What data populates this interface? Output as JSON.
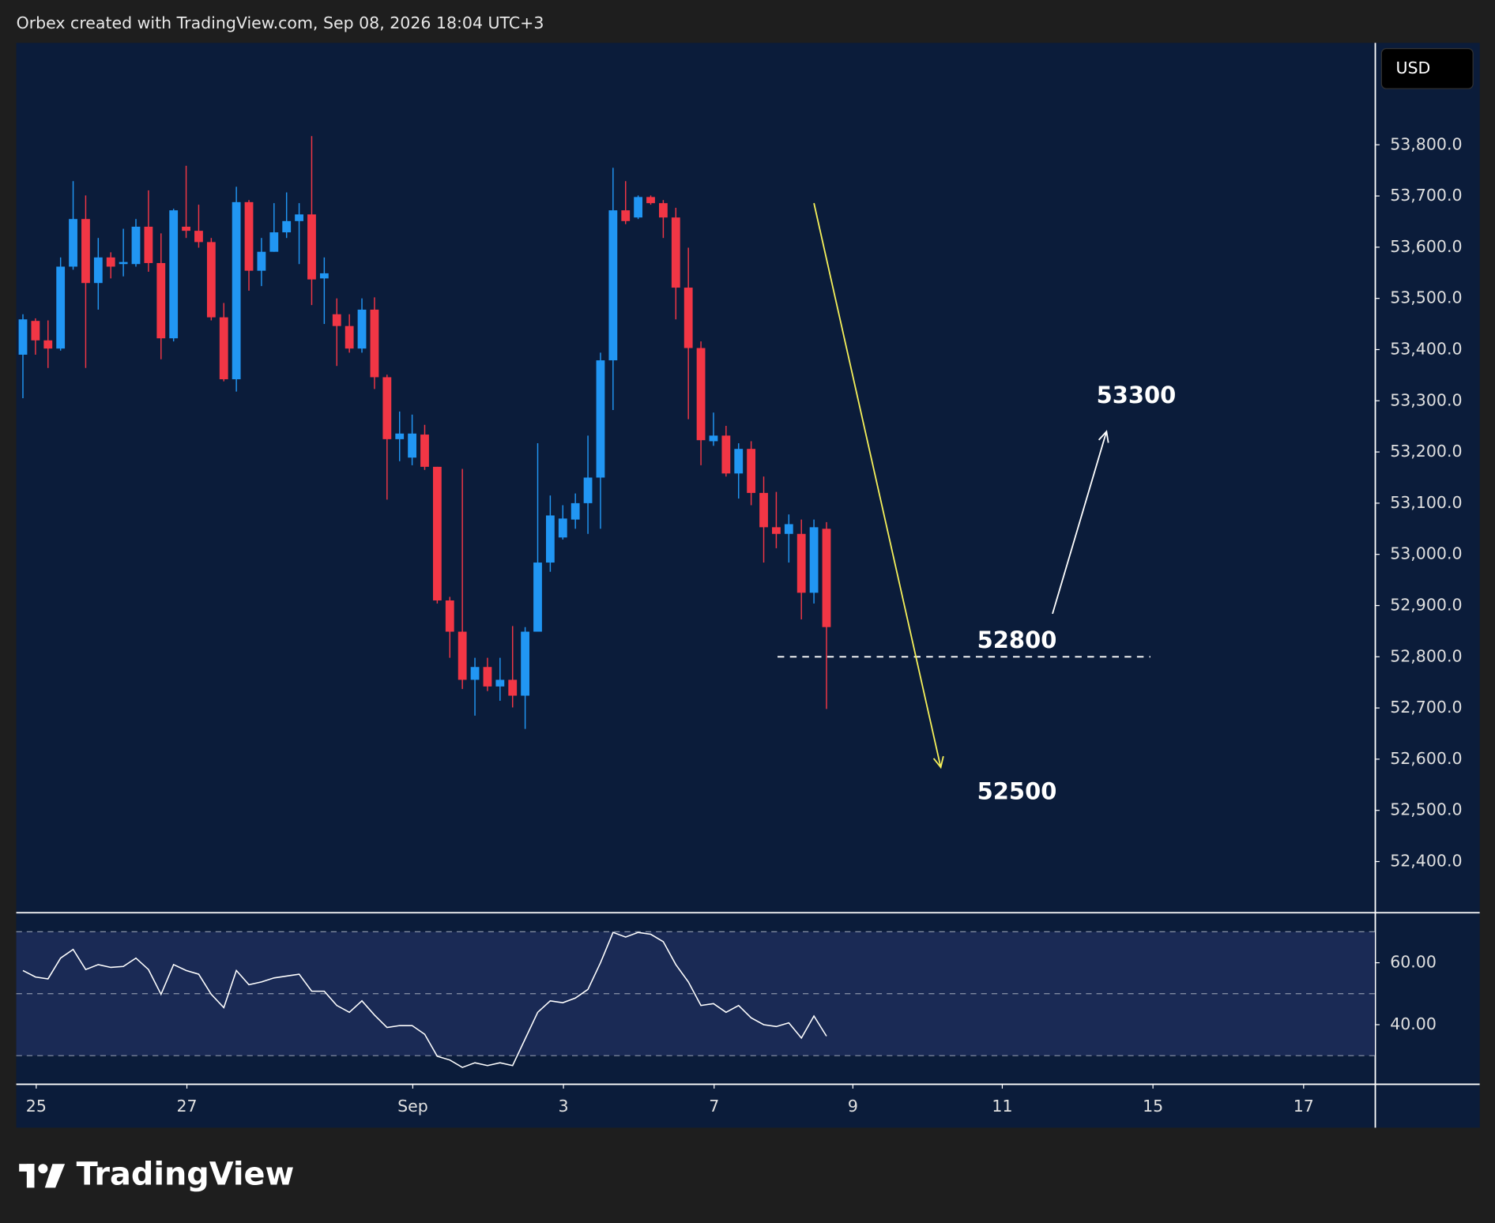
{
  "header": "Orbex created with TradingView.com, Sep 08, 2026 18:04 UTC+3",
  "brand": "TradingView",
  "chart_data": {
    "type": "candlestick",
    "currency": "USD",
    "xlim": [
      -0.53,
      107.67
    ],
    "xticks": [
      {
        "value": 1.06,
        "label": "25"
      },
      {
        "value": 13.06,
        "label": "27"
      },
      {
        "value": 31.05,
        "label": "Sep"
      },
      {
        "value": 43.05,
        "label": "3"
      },
      {
        "value": 55.05,
        "label": "7"
      },
      {
        "value": 66.1,
        "label": "9"
      },
      {
        "value": 78,
        "label": "11"
      },
      {
        "value": 90,
        "label": "15"
      },
      {
        "value": 102,
        "label": "17"
      }
    ],
    "ylim": [
      52301,
      53999
    ],
    "yticks": [
      {
        "value": 52400,
        "label": "52,400.0"
      },
      {
        "value": 52500,
        "label": "52,500.0"
      },
      {
        "value": 52600,
        "label": "52,600.0"
      },
      {
        "value": 52700,
        "label": "52,700.0"
      },
      {
        "value": 52800,
        "label": "52,800.0"
      },
      {
        "value": 52900,
        "label": "52,900.0"
      },
      {
        "value": 53000,
        "label": "53,000.0"
      },
      {
        "value": 53100,
        "label": "53,100.0"
      },
      {
        "value": 53200,
        "label": "53,200.0"
      },
      {
        "value": 53300,
        "label": "53,300.0"
      },
      {
        "value": 53400,
        "label": "53,400.0"
      },
      {
        "value": 53500,
        "label": "53,500.0"
      },
      {
        "value": 53600,
        "label": "53,600.0"
      },
      {
        "value": 53700,
        "label": "53,700.0"
      },
      {
        "value": 53800,
        "label": "53,800.0"
      }
    ],
    "up_color": "#2196f3",
    "down_color": "#f23645",
    "open": [
      53390,
      53456,
      53418,
      53402,
      53562,
      53655,
      53530,
      53580,
      53567,
      53567,
      53640,
      53569,
      53422,
      53640,
      53632,
      53610,
      53463,
      53342,
      53688,
      53554,
      53591,
      53629,
      53651,
      53664,
      53539,
      53469,
      53446,
      53402,
      53478,
      53346,
      53225,
      53189,
      53234,
      53171,
      52910,
      52849,
      52755,
      52780,
      52742,
      52755,
      52724,
      52849,
      52984,
      53033,
      53068,
      53100,
      53150,
      53379,
      53672,
      53658,
      53698,
      53686,
      53658,
      53521,
      53403,
      53221,
      53232,
      53158,
      53206,
      53120,
      53053,
      53040,
      53040,
      52925,
      53050
    ],
    "high": [
      53469,
      53461,
      53457,
      53580,
      53729,
      53701,
      53618,
      53590,
      53636,
      53655,
      53711,
      53627,
      53675,
      53759,
      53683,
      53618,
      53491,
      53718,
      53692,
      53618,
      53686,
      53707,
      53686,
      53817,
      53580,
      53500,
      53469,
      53500,
      53502,
      53351,
      53279,
      53273,
      53253,
      53171,
      52917,
      53167,
      52798,
      52798,
      52798,
      52860,
      52858,
      53217,
      53115,
      53096,
      53119,
      53232,
      53394,
      53755,
      53729,
      53701,
      53701,
      53692,
      53677,
      53599,
      53416,
      53277,
      53251,
      53217,
      53221,
      53152,
      53122,
      53078,
      53068,
      53068,
      53063
    ],
    "low": [
      53305,
      53390,
      53364,
      53398,
      53556,
      53364,
      53478,
      53539,
      53543,
      53562,
      53552,
      53381,
      53416,
      53618,
      53599,
      53457,
      53338,
      53318,
      53515,
      53524,
      53591,
      53618,
      53567,
      53487,
      53450,
      53368,
      53394,
      53394,
      53323,
      53107,
      53182,
      53174,
      53165,
      52904,
      52798,
      52737,
      52685,
      52733,
      52714,
      52701,
      52659,
      52849,
      52966,
      53029,
      53050,
      53040,
      53050,
      53282,
      53645,
      53655,
      53683,
      53618,
      53459,
      53264,
      53174,
      53212,
      53152,
      53109,
      53096,
      52984,
      53012,
      52984,
      52873,
      52904,
      52698
    ],
    "close": [
      53459,
      53418,
      53402,
      53562,
      53655,
      53530,
      53580,
      53562,
      53571,
      53640,
      53569,
      53422,
      53672,
      53632,
      53610,
      53463,
      53342,
      53688,
      53554,
      53591,
      53629,
      53651,
      53664,
      53537,
      53549,
      53446,
      53402,
      53478,
      53346,
      53225,
      53236,
      53236,
      53171,
      52910,
      52849,
      52755,
      52780,
      52742,
      52755,
      52724,
      52849,
      52984,
      53076,
      53070,
      53100,
      53150,
      53379,
      53672,
      53651,
      53698,
      53686,
      53658,
      53521,
      53403,
      53223,
      53232,
      53158,
      53206,
      53120,
      53053,
      53040,
      53059,
      52925,
      53053,
      52858
    ],
    "annotations": {
      "arrows": [
        {
          "x0": 63.0,
          "y0": 53686,
          "x1": 73.1,
          "y1": 52584,
          "color": "#f5f05a"
        },
        {
          "x0": 82.0,
          "y0": 52884,
          "x1": 86.3,
          "y1": 53240,
          "color": "#ffffff"
        }
      ],
      "hline": {
        "y": 52800,
        "x0": 60.1,
        "x1": 89.8,
        "color": "#ffffff"
      },
      "labels": [
        {
          "text": "52800",
          "x": 76.0,
          "y": 52830
        },
        {
          "text": "52500",
          "x": 76.0,
          "y": 52534
        },
        {
          "text": "53300",
          "x": 85.5,
          "y": 53308
        }
      ]
    },
    "indicator": {
      "type": "line",
      "color": "#ffffff",
      "ylim": [
        20.9,
        76
      ],
      "yticks": [
        {
          "value": 40,
          "label": "40.00"
        },
        {
          "value": 60,
          "label": "60.00"
        }
      ],
      "levels": [
        30,
        50,
        70
      ],
      "values": [
        57.5,
        55.4,
        54.8,
        61.5,
        64.3,
        57.8,
        59.4,
        58.5,
        58.8,
        61.5,
        57.8,
        49.8,
        59.4,
        57.5,
        56.3,
        49.8,
        45.5,
        57.5,
        52.9,
        53.8,
        55.1,
        55.7,
        56.3,
        50.8,
        50.8,
        46.2,
        44.0,
        47.7,
        43.1,
        39.1,
        39.7,
        39.7,
        36.9,
        29.8,
        28.6,
        26.2,
        27.7,
        26.8,
        27.7,
        26.8,
        35.4,
        44.0,
        47.7,
        47.1,
        48.6,
        51.4,
        60.0,
        69.8,
        68.3,
        69.8,
        69.2,
        66.8,
        59.4,
        53.8,
        46.2,
        46.8,
        44.0,
        46.2,
        42.2,
        40.0,
        39.4,
        40.6,
        35.7,
        42.8,
        36.3
      ]
    }
  }
}
